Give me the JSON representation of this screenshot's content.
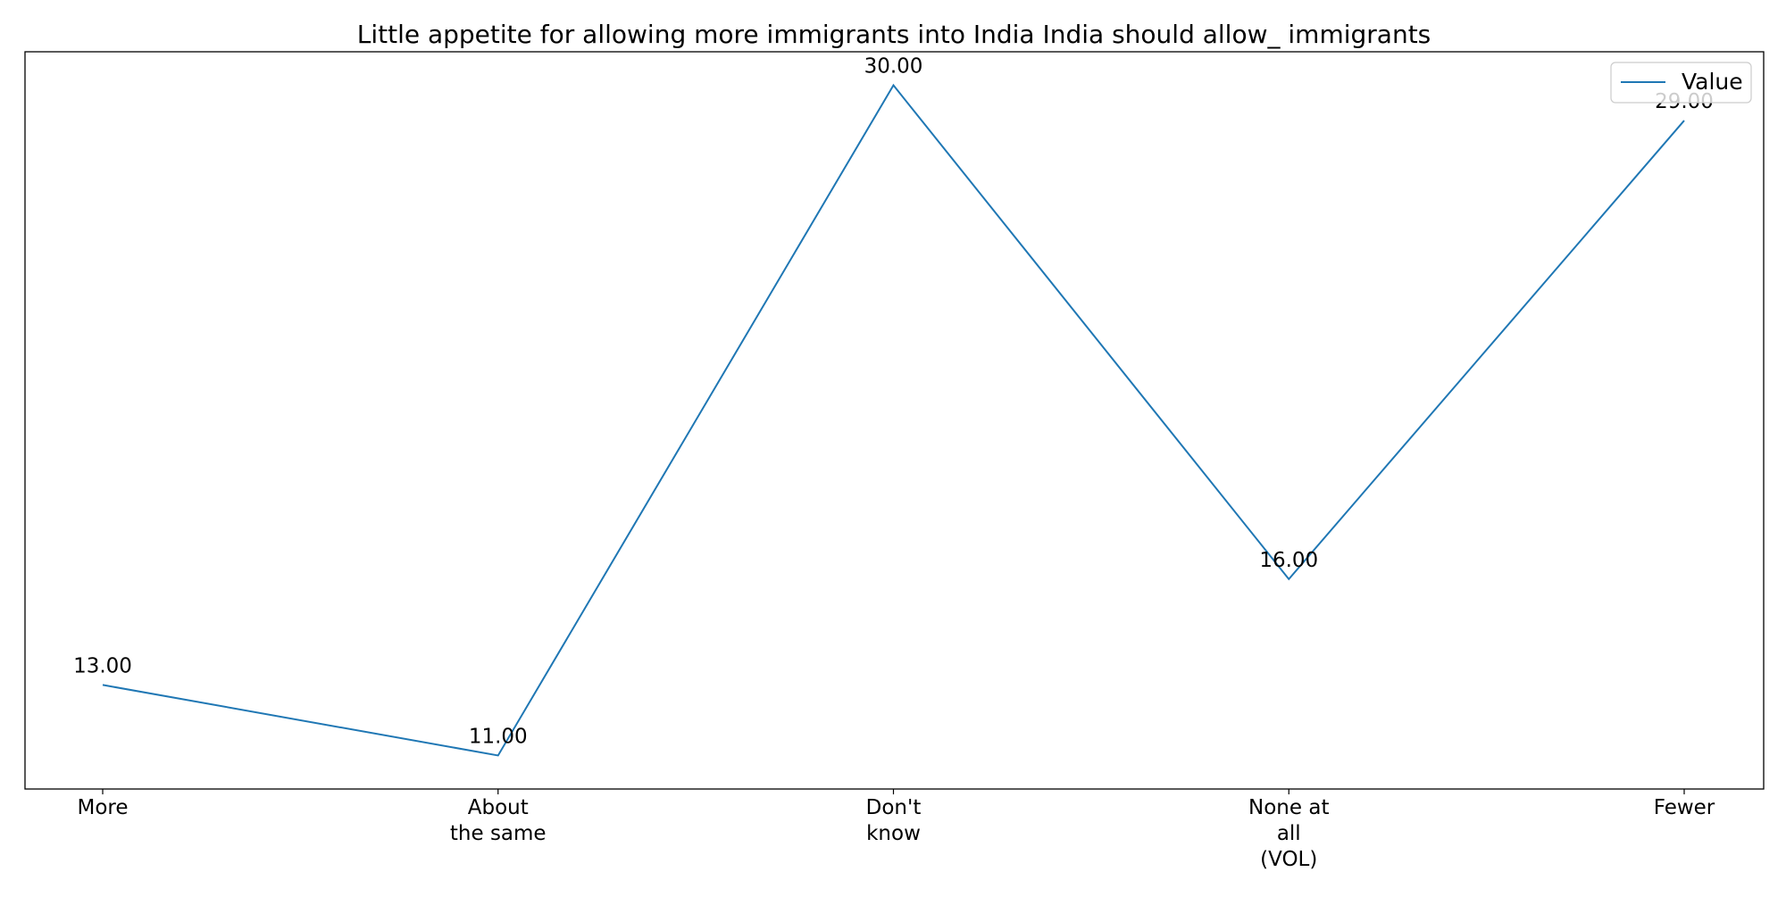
{
  "chart_data": {
    "type": "line",
    "title": "Little appetite for allowing more immigrants into India India should allow_ immigrants",
    "xlabel": "",
    "ylabel": "",
    "categories": [
      "More",
      "About\nthe same",
      "Don't\nknow",
      "None at\nall\n(VOL)",
      "Fewer"
    ],
    "series": [
      {
        "name": "Value",
        "values": [
          13,
          11,
          30,
          16,
          29
        ],
        "labels": [
          "13.00",
          "11.00",
          "30.00",
          "16.00",
          "29.00"
        ]
      }
    ],
    "ylim": [
      10.05,
      30.95
    ],
    "y_ticks_shown": false,
    "grid": false,
    "legend": "top-right",
    "colors": {
      "series": "#1f77b4",
      "axes": "#000000",
      "background": "#ffffff"
    }
  }
}
